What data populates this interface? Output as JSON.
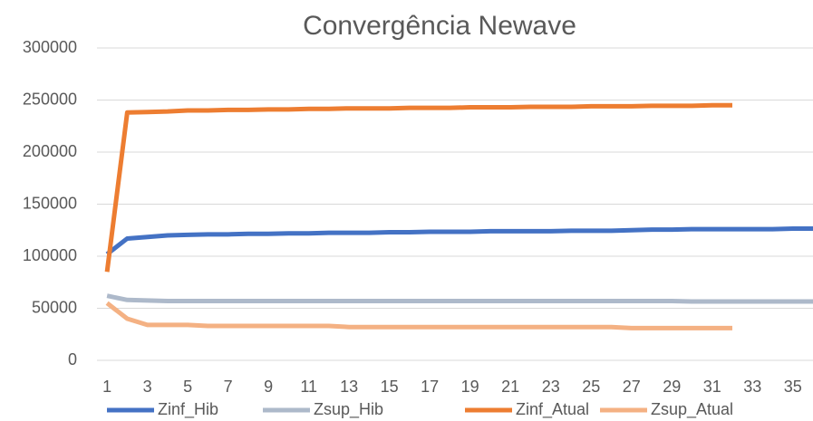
{
  "chart_data": {
    "type": "line",
    "title": "Convergência Newave",
    "x": [
      1,
      2,
      3,
      4,
      5,
      6,
      7,
      8,
      9,
      10,
      11,
      12,
      13,
      14,
      15,
      16,
      17,
      18,
      19,
      20,
      21,
      22,
      23,
      24,
      25,
      26,
      27,
      28,
      29,
      30,
      31,
      32,
      33,
      34,
      35,
      36
    ],
    "xlim": [
      0.5,
      36
    ],
    "xticks": [
      1,
      3,
      5,
      7,
      9,
      11,
      13,
      15,
      17,
      19,
      21,
      23,
      25,
      27,
      29,
      31,
      33,
      35
    ],
    "ylim": [
      0,
      300000
    ],
    "yticks": [
      0,
      50000,
      100000,
      150000,
      200000,
      250000,
      300000
    ],
    "grid": true,
    "legend": "bottom",
    "series": [
      {
        "name": "Zinf_Hib",
        "color": "#4472c4",
        "values": [
          102000,
          117000,
          118500,
          120000,
          120500,
          121000,
          121000,
          121500,
          121500,
          122000,
          122000,
          122500,
          122500,
          122500,
          123000,
          123000,
          123500,
          123500,
          123500,
          124000,
          124000,
          124000,
          124000,
          124500,
          124500,
          124500,
          125000,
          125500,
          125500,
          126000,
          126000,
          126000,
          126000,
          126000,
          126500,
          126500
        ]
      },
      {
        "name": "Zsup_Hib",
        "color": "#adb9ca",
        "values": [
          62000,
          58000,
          57500,
          57000,
          57000,
          57000,
          57000,
          57000,
          57000,
          57000,
          57000,
          57000,
          57000,
          57000,
          57000,
          57000,
          57000,
          57000,
          57000,
          57000,
          57000,
          57000,
          57000,
          57000,
          57000,
          57000,
          57000,
          57000,
          57000,
          56500,
          56500,
          56500,
          56500,
          56500,
          56500,
          56500
        ]
      },
      {
        "name": "Zinf_Atual",
        "color": "#ed7d31",
        "values": [
          85000,
          238000,
          238500,
          239000,
          240000,
          240000,
          240500,
          240500,
          241000,
          241000,
          241500,
          241500,
          242000,
          242000,
          242000,
          242500,
          242500,
          242500,
          243000,
          243000,
          243000,
          243500,
          243500,
          243500,
          244000,
          244000,
          244000,
          244500,
          244500,
          244500,
          245000,
          245000,
          null,
          null,
          null,
          null
        ]
      },
      {
        "name": "Zsup_Atual",
        "color": "#f4b183",
        "values": [
          55000,
          40000,
          34000,
          34000,
          34000,
          33000,
          33000,
          33000,
          33000,
          33000,
          33000,
          33000,
          32000,
          32000,
          32000,
          32000,
          32000,
          32000,
          32000,
          32000,
          32000,
          32000,
          32000,
          32000,
          32000,
          32000,
          31000,
          31000,
          31000,
          31000,
          31000,
          31000,
          null,
          null,
          null,
          null
        ]
      }
    ]
  }
}
